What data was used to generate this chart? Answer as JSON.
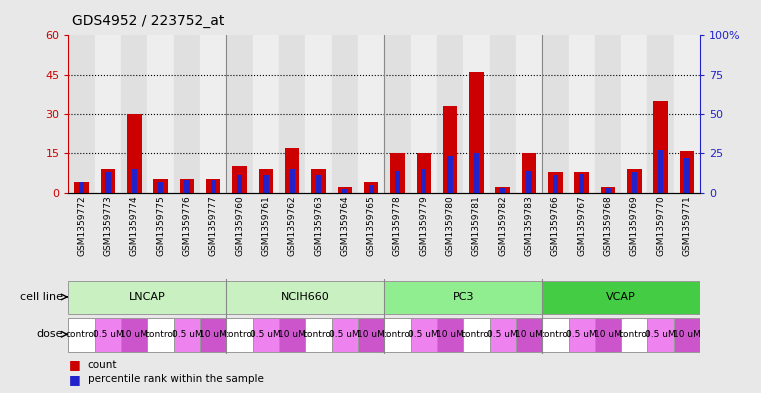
{
  "title": "GDS4952 / 223752_at",
  "samples": [
    "GSM1359772",
    "GSM1359773",
    "GSM1359774",
    "GSM1359775",
    "GSM1359776",
    "GSM1359777",
    "GSM1359760",
    "GSM1359761",
    "GSM1359762",
    "GSM1359763",
    "GSM1359764",
    "GSM1359765",
    "GSM1359778",
    "GSM1359779",
    "GSM1359780",
    "GSM1359781",
    "GSM1359782",
    "GSM1359783",
    "GSM1359766",
    "GSM1359767",
    "GSM1359768",
    "GSM1359769",
    "GSM1359770",
    "GSM1359771"
  ],
  "counts": [
    4,
    9,
    30,
    5,
    5,
    5,
    10,
    9,
    17,
    9,
    2,
    4,
    15,
    15,
    33,
    46,
    2,
    15,
    8,
    8,
    2,
    9,
    35,
    16
  ],
  "percentiles": [
    7,
    13,
    15,
    7,
    8,
    8,
    11,
    11,
    15,
    11,
    2,
    5,
    14,
    15,
    23,
    25,
    3,
    14,
    11,
    12,
    3,
    13,
    27,
    22
  ],
  "doses": [
    "control",
    "0.5 uM",
    "10 uM",
    "control",
    "0.5 uM",
    "10 uM",
    "control",
    "0.5 uM",
    "10 uM",
    "control",
    "0.5 uM",
    "10 uM",
    "control",
    "0.5 uM",
    "10 uM",
    "control",
    "0.5 uM",
    "10 uM",
    "control",
    "0.5 uM",
    "10 uM",
    "control",
    "0.5 uM",
    "10 uM"
  ],
  "cell_line_groups": [
    {
      "name": "LNCAP",
      "start": 0,
      "end": 5,
      "color": "#c8f0c0"
    },
    {
      "name": "NCIH660",
      "start": 6,
      "end": 11,
      "color": "#c8f0c0"
    },
    {
      "name": "PC3",
      "start": 12,
      "end": 17,
      "color": "#90EE90"
    },
    {
      "name": "VCAP",
      "start": 18,
      "end": 23,
      "color": "#44cc44"
    }
  ],
  "dose_groups": [
    {
      "name": "control",
      "indices": [
        0,
        3,
        6,
        9,
        12,
        15,
        18,
        21
      ],
      "color": "#ffffff"
    },
    {
      "name": "0.5 uM",
      "indices": [
        1,
        4,
        7,
        10,
        13,
        16,
        19,
        22
      ],
      "color": "#ee82ee"
    },
    {
      "name": "10 uM",
      "indices": [
        2,
        5,
        8,
        11,
        14,
        17,
        20,
        23
      ],
      "color": "#cc55cc"
    }
  ],
  "bar_color": "#cc0000",
  "percentile_color": "#2222cc",
  "ylim_left": [
    0,
    60
  ],
  "ylim_right": [
    0,
    100
  ],
  "yticks_left": [
    0,
    15,
    30,
    45,
    60
  ],
  "yticks_right": [
    0,
    25,
    50,
    75,
    100
  ],
  "ytick_right_labels": [
    "0",
    "25",
    "50",
    "75",
    "100%"
  ],
  "bg_color": "#e8e8e8",
  "plot_bg": "#ffffff",
  "col_bg_even": "#e0e0e0",
  "col_bg_odd": "#eeeeee"
}
